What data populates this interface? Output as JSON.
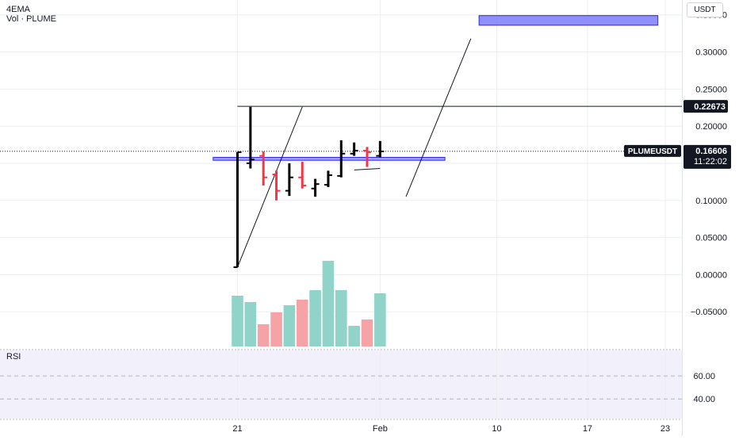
{
  "legend": {
    "ema_label": "4EMA",
    "volume_label": "Vol · PLUME"
  },
  "currency": "USDT",
  "rsi_label": "RSI",
  "symbol_tag": "PLUMEUSDT",
  "price_tag": {
    "price": "0.16606",
    "countdown": "11:22:02"
  },
  "level_tag": "0.22673",
  "colors": {
    "up": "#000000",
    "down": "#f23645",
    "volume_up": "#8fd3c9",
    "volume_down": "#f5a3a6",
    "zone_fill": "#7b7bff",
    "zone_stroke": "#2929ee",
    "rsi_band": "#f2f0fa",
    "grid": "#eceef2"
  },
  "chart_data": {
    "type": "ohlc",
    "title": "",
    "xlabel": "",
    "ylabel": "",
    "ylim": [
      -0.1,
      0.37
    ],
    "y_ticks": [
      "0.35000",
      "0.30000",
      "0.25000",
      "0.20000",
      "0.15000",
      "0.10000",
      "0.05000",
      "0.00000",
      "−0.05000"
    ],
    "y_tick_values": [
      0.35,
      0.3,
      0.25,
      0.2,
      0.15,
      0.1,
      0.05,
      0.0,
      -0.05
    ],
    "x_ticks": [
      "21",
      "Feb",
      "10",
      "17",
      "23"
    ],
    "x_tick_values": [
      "2025-01-21",
      "2025-02-01",
      "2025-02-10",
      "2025-02-17",
      "2025-02-23"
    ],
    "grid": true,
    "candles": [
      {
        "date": "2025-01-21",
        "open": 0.01,
        "high": 0.165,
        "low": 0.01,
        "close": 0.165
      },
      {
        "date": "2025-01-22",
        "open": 0.15,
        "high": 0.226,
        "low": 0.143,
        "close": 0.155
      },
      {
        "date": "2025-01-23",
        "open": 0.16,
        "high": 0.166,
        "low": 0.12,
        "close": 0.131
      },
      {
        "date": "2025-01-24",
        "open": 0.135,
        "high": 0.14,
        "low": 0.1,
        "close": 0.113
      },
      {
        "date": "2025-01-25",
        "open": 0.113,
        "high": 0.15,
        "low": 0.106,
        "close": 0.131
      },
      {
        "date": "2025-01-26",
        "open": 0.131,
        "high": 0.152,
        "low": 0.116,
        "close": 0.12
      },
      {
        "date": "2025-01-27",
        "open": 0.116,
        "high": 0.129,
        "low": 0.105,
        "close": 0.122
      },
      {
        "date": "2025-01-28",
        "open": 0.121,
        "high": 0.14,
        "low": 0.118,
        "close": 0.134
      },
      {
        "date": "2025-01-29",
        "open": 0.133,
        "high": 0.181,
        "low": 0.131,
        "close": 0.163
      },
      {
        "date": "2025-01-30",
        "open": 0.163,
        "high": 0.178,
        "low": 0.16,
        "close": 0.167
      },
      {
        "date": "2025-01-31",
        "open": 0.167,
        "high": 0.172,
        "low": 0.145,
        "close": 0.165
      },
      {
        "date": "2025-02-01",
        "open": 0.16,
        "high": 0.18,
        "low": 0.158,
        "close": 0.166
      }
    ],
    "volume": [
      {
        "date": "2025-01-21",
        "value": 64,
        "dir": "up"
      },
      {
        "date": "2025-01-22",
        "value": 56,
        "dir": "up"
      },
      {
        "date": "2025-01-23",
        "value": 28,
        "dir": "down"
      },
      {
        "date": "2025-01-24",
        "value": 43,
        "dir": "down"
      },
      {
        "date": "2025-01-25",
        "value": 52,
        "dir": "up"
      },
      {
        "date": "2025-01-26",
        "value": 59,
        "dir": "down"
      },
      {
        "date": "2025-01-27",
        "value": 71,
        "dir": "up"
      },
      {
        "date": "2025-01-28",
        "value": 108,
        "dir": "up"
      },
      {
        "date": "2025-01-29",
        "value": 71,
        "dir": "up"
      },
      {
        "date": "2025-01-30",
        "value": 26,
        "dir": "up"
      },
      {
        "date": "2025-01-31",
        "value": 34,
        "dir": "down"
      },
      {
        "date": "2025-02-01",
        "value": 67,
        "dir": "up"
      }
    ],
    "horizontal_level": 0.22673,
    "current_price": 0.16606,
    "support_zone": {
      "from": "2025-01-19",
      "to": "2025-02-06",
      "low": 0.154,
      "high": 0.158
    },
    "target_zone": {
      "from": "2025-02-09",
      "to": "2025-02-22",
      "low": 0.336,
      "high": 0.349
    },
    "trendlines": [
      {
        "x1": "2025-01-21",
        "y1": 0.01,
        "x2": "2025-01-26",
        "y2": 0.226
      },
      {
        "x1": "2025-02-03",
        "y1": 0.105,
        "x2": "2025-02-08",
        "y2": 0.318
      },
      {
        "x1": "2025-01-30",
        "y1": 0.141,
        "x2": "2025-02-01",
        "y2": 0.143
      }
    ],
    "rsi_ticks": [
      "60.00",
      "40.00"
    ],
    "rsi_tick_values": [
      60,
      40
    ],
    "rsi_ylim": [
      23,
      82
    ]
  }
}
